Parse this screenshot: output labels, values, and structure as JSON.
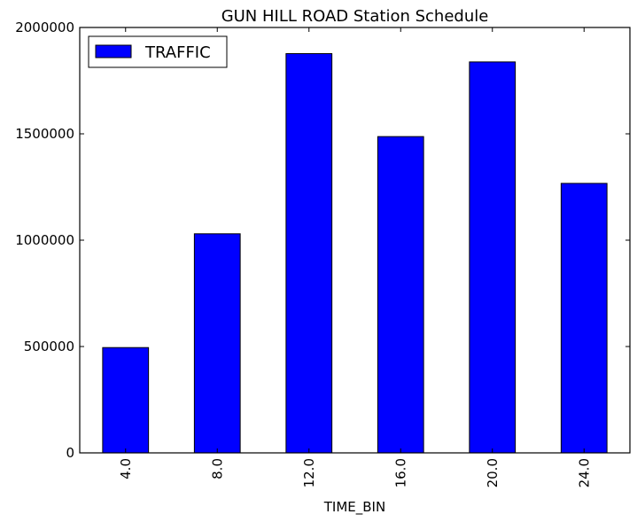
{
  "chart_data": {
    "type": "bar",
    "title": "GUN HILL ROAD Station Schedule",
    "xlabel": "TIME_BIN",
    "ylabel": "",
    "categories": [
      "4.0",
      "8.0",
      "12.0",
      "16.0",
      "20.0",
      "24.0"
    ],
    "series": [
      {
        "name": "TRAFFIC",
        "values": [
          495000,
          1030000,
          1877000,
          1487000,
          1838000,
          1267000
        ],
        "color": "#0000ff"
      }
    ],
    "ylim": [
      0,
      2000000
    ],
    "yticks": [
      "0",
      "500000",
      "1000000",
      "1500000",
      "2000000"
    ],
    "ytick_values": [
      0,
      500000,
      1000000,
      1500000,
      2000000
    ],
    "grid": false,
    "legend_position": "top-left",
    "x_tick_rotation": "vertical"
  }
}
